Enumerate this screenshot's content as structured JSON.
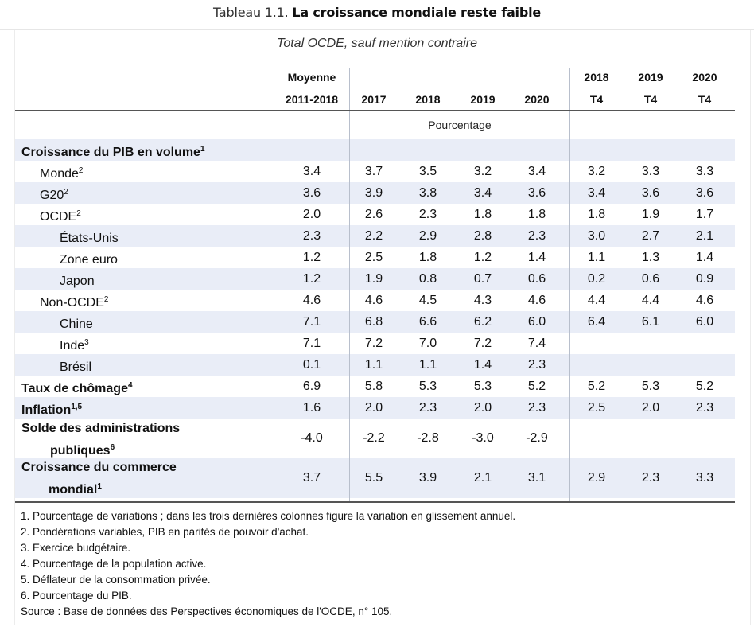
{
  "caption": {
    "prefix": "Tableau 1.1.",
    "title": "La croissance mondiale reste faible"
  },
  "subtitle": "Total OCDE, sauf mention contraire",
  "headers": [
    {
      "line1": "Moyenne",
      "line2": "2011-2018"
    },
    {
      "line1": "",
      "line2": "2017"
    },
    {
      "line1": "",
      "line2": "2018"
    },
    {
      "line1": "",
      "line2": "2019"
    },
    {
      "line1": "",
      "line2": "2020"
    },
    {
      "line1": "2018",
      "line2": "T4"
    },
    {
      "line1": "2019",
      "line2": "T4"
    },
    {
      "line1": "2020",
      "line2": "T4"
    }
  ],
  "unit": "Pourcentage",
  "rows": [
    {
      "label": "Croissance du PIB en volume",
      "sup": "1",
      "bold": true,
      "indent": 0,
      "values": [
        "",
        "",
        "",
        "",
        "",
        "",
        "",
        ""
      ]
    },
    {
      "label": "Monde",
      "sup": "2",
      "indent": 1,
      "values": [
        "3.4",
        "3.7",
        "3.5",
        "3.2",
        "3.4",
        "3.2",
        "3.3",
        "3.3"
      ]
    },
    {
      "label": "G20",
      "sup": "2",
      "indent": 1,
      "values": [
        "3.6",
        "3.9",
        "3.8",
        "3.4",
        "3.6",
        "3.4",
        "3.6",
        "3.6"
      ]
    },
    {
      "label": "OCDE",
      "sup": "2",
      "indent": 1,
      "values": [
        "2.0",
        "2.6",
        "2.3",
        "1.8",
        "1.8",
        "1.8",
        "1.9",
        "1.7"
      ]
    },
    {
      "label": "États-Unis",
      "sup": "",
      "indent": 2,
      "values": [
        "2.3",
        "2.2",
        "2.9",
        "2.8",
        "2.3",
        "3.0",
        "2.7",
        "2.1"
      ]
    },
    {
      "label": "Zone euro",
      "sup": "",
      "indent": 2,
      "values": [
        "1.2",
        "2.5",
        "1.8",
        "1.2",
        "1.4",
        "1.1",
        "1.3",
        "1.4"
      ]
    },
    {
      "label": "Japon",
      "sup": "",
      "indent": 2,
      "values": [
        "1.2",
        "1.9",
        "0.8",
        "0.7",
        "0.6",
        "0.2",
        "0.6",
        "0.9"
      ]
    },
    {
      "label": "Non-OCDE",
      "sup": "2",
      "indent": 1,
      "values": [
        "4.6",
        "4.6",
        "4.5",
        "4.3",
        "4.6",
        "4.4",
        "4.4",
        "4.6"
      ]
    },
    {
      "label": "Chine",
      "sup": "",
      "indent": 2,
      "values": [
        "7.1",
        "6.8",
        "6.6",
        "6.2",
        "6.0",
        "6.4",
        "6.1",
        "6.0"
      ]
    },
    {
      "label": "Inde",
      "sup": "3",
      "indent": 2,
      "values": [
        "7.1",
        "7.2",
        "7.0",
        "7.2",
        "7.4",
        "",
        "",
        ""
      ]
    },
    {
      "label": "Brésil",
      "sup": "",
      "indent": 2,
      "values": [
        "0.1",
        "1.1",
        "1.1",
        "1.4",
        "2.3",
        "",
        "",
        ""
      ]
    },
    {
      "label": "Taux de chômage",
      "sup": "4",
      "bold": true,
      "indent": 0,
      "values": [
        "6.9",
        "5.8",
        "5.3",
        "5.3",
        "5.2",
        "5.2",
        "5.3",
        "5.2"
      ]
    },
    {
      "label": "Inflation",
      "sup": "1,5",
      "bold": true,
      "indent": 0,
      "values": [
        "1.6",
        "2.0",
        "2.3",
        "2.0",
        "2.3",
        "2.5",
        "2.0",
        "2.3"
      ]
    },
    {
      "label": "Solde des administrations",
      "label2": "publiques",
      "sup": "6",
      "bold": true,
      "indent": 0,
      "values": [
        "-4.0",
        "-2.2",
        "-2.8",
        "-3.0",
        "-2.9",
        "",
        "",
        ""
      ]
    },
    {
      "label": "Croissance du commerce",
      "label2": "mondial",
      "sup": "1",
      "bold": true,
      "indent": 0,
      "values": [
        "3.7",
        "5.5",
        "3.9",
        "2.1",
        "3.1",
        "2.9",
        "2.3",
        "3.3"
      ]
    }
  ],
  "notes": [
    "1.  Pourcentage de variations ; dans les trois dernières colonnes figure la variation en glissement annuel.",
    "2.  Pondérations variables, PIB en parités de pouvoir d'achat.",
    "3. Exercice budgétaire.",
    "4.  Pourcentage de la population active.",
    "5.  Déflateur de la consommation privée.",
    "6.  Pourcentage du PIB."
  ],
  "source": "Source : Base de données des Perspectives économiques de l'OCDE, n° 105."
}
